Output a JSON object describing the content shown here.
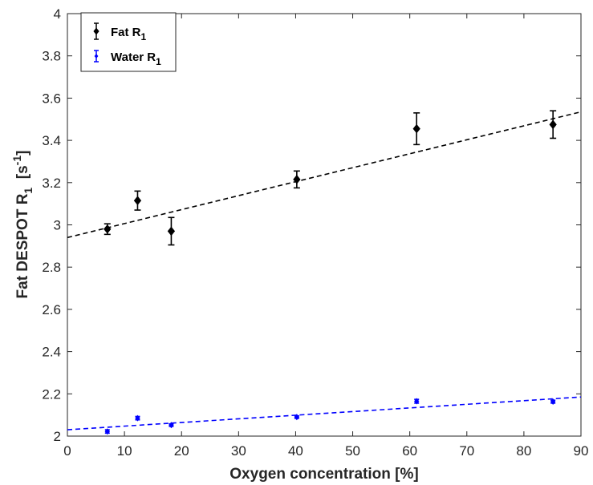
{
  "chart_data": {
    "type": "scatter",
    "xlabel": "Oxygen concentration [%]",
    "ylabel": {
      "main": "Fat DESPOT R",
      "sub": "1",
      "unit_prefix": "  [s",
      "sup": "-1",
      "unit_suffix": "]"
    },
    "xlim": [
      0,
      90
    ],
    "ylim": [
      2,
      4
    ],
    "xticks": [
      0,
      10,
      20,
      30,
      40,
      50,
      60,
      70,
      80,
      90
    ],
    "yticks": [
      2,
      2.2,
      2.4,
      2.6,
      2.8,
      3,
      3.2,
      3.4,
      3.6,
      3.8,
      4
    ],
    "ytick_labels": [
      "2",
      "2.2",
      "2.4",
      "2.6",
      "2.8",
      "3",
      "3.2",
      "3.4",
      "3.6",
      "3.8",
      "4"
    ],
    "legend_position": "top-left",
    "series": [
      {
        "name": "Fat R1",
        "label_main": "Fat R",
        "label_sub": "1",
        "color": "#000000",
        "x": [
          7,
          12.3,
          18.2,
          40.2,
          61.2,
          85.1
        ],
        "y": [
          2.98,
          3.115,
          2.97,
          3.215,
          3.455,
          3.475
        ],
        "err": [
          0.025,
          0.045,
          0.065,
          0.04,
          0.075,
          0.065
        ],
        "fit": {
          "x": [
            0,
            90
          ],
          "y": [
            2.94,
            3.535
          ]
        }
      },
      {
        "name": "Water R1",
        "label_main": "Water R",
        "label_sub": "1",
        "color": "#0000ff",
        "x": [
          7,
          12.3,
          18.2,
          40.2,
          61.2,
          85.1
        ],
        "y": [
          2.022,
          2.085,
          2.052,
          2.09,
          2.165,
          2.163
        ],
        "err": [
          0.008,
          0.008,
          0.006,
          0.006,
          0.009,
          0.007
        ],
        "fit": {
          "x": [
            0,
            90
          ],
          "y": [
            2.03,
            2.185
          ]
        }
      }
    ]
  }
}
